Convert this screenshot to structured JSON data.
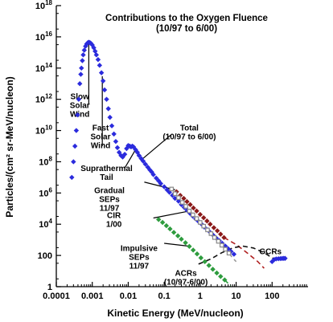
{
  "chart_data": {
    "type": "scatter",
    "title": "Contributions to the Oxygen Fluence",
    "subtitle": "(10/97 to 6/00)",
    "xlabel": "Kinetic Energy (MeV/nucleon)",
    "ylabel": "Particles/(cm² sr-MeV/nucleon)",
    "x_scale": "log",
    "y_scale": "log",
    "xlim": [
      0.0001,
      1000
    ],
    "ylim": [
      1,
      1e+18
    ],
    "x_tick_labels": [
      {
        "v": 0.0001,
        "label": "0.0001"
      },
      {
        "v": 0.001,
        "label": "0.001"
      },
      {
        "v": 0.01,
        "label": "0.01"
      },
      {
        "v": 0.1,
        "label": "0.1"
      },
      {
        "v": 1,
        "label": "1"
      },
      {
        "v": 10,
        "label": "10"
      },
      {
        "v": 100,
        "label": "100"
      }
    ],
    "y_tick_labels": [
      {
        "v": 1,
        "base": "1",
        "exp": ""
      },
      {
        "v": 100,
        "base": "100",
        "exp": ""
      },
      {
        "v": 10000,
        "base": "10",
        "exp": "4"
      },
      {
        "v": 1000000,
        "base": "10",
        "exp": "6"
      },
      {
        "v": 100000000,
        "base": "10",
        "exp": "8"
      },
      {
        "v": 10000000000,
        "base": "10",
        "exp": "10"
      },
      {
        "v": 1000000000000,
        "base": "10",
        "exp": "12"
      },
      {
        "v": 100000000000000,
        "base": "10",
        "exp": "14"
      },
      {
        "v": 10000000000000000,
        "base": "10",
        "exp": "16"
      },
      {
        "v": 1000000000000000000,
        "base": "10",
        "exp": "18"
      }
    ],
    "series": [
      {
        "color": "#2b2bdd",
        "marker": "diamond",
        "points": [
          [
            0.00027,
            10000000.0
          ],
          [
            0.0003,
            100000000.0
          ],
          [
            0.00033,
            1000000000.0
          ],
          [
            0.00036,
            10000000000.0
          ],
          [
            0.00039,
            100000000000.0
          ],
          [
            0.00042,
            1000000000000.0
          ],
          [
            0.00045,
            10000000000000.0
          ],
          [
            0.00048,
            40000000000000.0
          ],
          [
            0.0005,
            100000000000000.0
          ],
          [
            0.00053,
            300000000000000.0
          ],
          [
            0.00056,
            700000000000000.0
          ],
          [
            0.0006,
            1400000000000000.0
          ],
          [
            0.00065,
            2500000000000000.0
          ],
          [
            0.0007,
            3500000000000000.0
          ],
          [
            0.00075,
            4200000000000000.0
          ],
          [
            0.0008,
            4500000000000000.0
          ],
          [
            0.00086,
            4300000000000000.0
          ],
          [
            0.00092,
            3800000000000000.0
          ],
          [
            0.001,
            3000000000000000.0
          ],
          [
            0.0011,
            2000000000000000.0
          ],
          [
            0.0012,
            1200000000000000.0
          ],
          [
            0.0013,
            700000000000000.0
          ],
          [
            0.00145,
            350000000000000.0
          ],
          [
            0.0016,
            150000000000000.0
          ],
          [
            0.0018,
            50000000000000.0
          ],
          [
            0.002,
            15000000000000.0
          ],
          [
            0.0022,
            4000000000000.0
          ],
          [
            0.0025,
            1000000000000.0
          ],
          [
            0.0028,
            250000000000.0
          ],
          [
            0.0031,
            70000000000.0
          ],
          [
            0.0035,
            20000000000.0
          ],
          [
            0.004,
            6000000000.0
          ],
          [
            0.0045,
            2000000000.0
          ],
          [
            0.005,
            800000000.0
          ],
          [
            0.0056,
            400000000.0
          ],
          [
            0.0063,
            250000000.0
          ],
          [
            0.007,
            200000000.0
          ],
          [
            0.008,
            300000000.0
          ],
          [
            0.009,
            700000000.0
          ],
          [
            0.01,
            1100000000.0
          ],
          [
            0.011,
            1000000000.0
          ],
          [
            0.012,
            900000000.0
          ],
          [
            0.013,
            1000000000.0
          ],
          [
            0.014,
            900000000.0
          ],
          [
            0.016,
            600000000.0
          ],
          [
            0.018,
            400000000.0
          ],
          [
            0.02,
            250000000.0
          ],
          [
            0.023,
            160000000.0
          ],
          [
            0.026,
            110000000.0
          ],
          [
            0.03,
            70000000.0
          ],
          [
            0.035,
            45000000.0
          ],
          [
            0.04,
            30000000.0
          ],
          [
            0.045,
            22000000.0
          ],
          [
            0.05,
            15000000.0
          ],
          [
            0.06,
            9000000.0
          ],
          [
            0.07,
            6000000.0
          ],
          [
            0.08,
            4000000.0
          ],
          [
            0.1,
            2500000.0
          ],
          [
            0.12,
            1600000.0
          ],
          [
            0.14,
            1100000.0
          ],
          [
            0.17,
            700000.0
          ],
          [
            0.2,
            450000.0
          ],
          [
            0.25,
            300000.0
          ],
          [
            0.3,
            180000.0
          ],
          [
            0.36,
            120000.0
          ],
          [
            0.43,
            80000.0
          ],
          [
            0.52,
            50000.0
          ],
          [
            0.62,
            33000.0
          ],
          [
            0.75,
            22000.0
          ],
          [
            0.9,
            15000.0
          ],
          [
            1.1,
            10000.0
          ],
          [
            1.3,
            6500.0
          ],
          [
            1.6,
            4500.0
          ],
          [
            1.9,
            3000.0
          ],
          [
            2.3,
            2000.0
          ],
          [
            2.8,
            1300.0
          ],
          [
            3.4,
            900
          ],
          [
            4.1,
            600
          ],
          [
            5.0,
            400
          ],
          [
            6.0,
            270
          ],
          [
            7.2,
            180
          ],
          [
            8.7,
            120
          ]
        ]
      },
      {
        "color": "#2b2bdd",
        "marker": "diamond",
        "points": [
          [
            100,
            40
          ],
          [
            115,
            55
          ],
          [
            130,
            60
          ],
          [
            150,
            62
          ],
          [
            170,
            63
          ],
          [
            190,
            64
          ],
          [
            210,
            65
          ],
          [
            230,
            65
          ]
        ]
      },
      {
        "color": "#8b1a1a",
        "marker": "diamond",
        "points": [
          [
            0.22,
            1200000.0
          ],
          [
            0.28,
            700000.0
          ],
          [
            0.35,
            450000.0
          ],
          [
            0.43,
            280000.0
          ],
          [
            0.53,
            180000.0
          ],
          [
            0.65,
            110000.0
          ],
          [
            0.8,
            70000.0
          ],
          [
            1.0,
            42000.0
          ],
          [
            1.25,
            26000.0
          ],
          [
            1.55,
            16000.0
          ],
          [
            1.9,
            10000.0
          ],
          [
            2.4,
            6000.0
          ],
          [
            3.0,
            3800.0
          ],
          [
            3.7,
            2300.0
          ],
          [
            4.6,
            1400.0
          ]
        ]
      },
      {
        "color": "#888888",
        "marker": "square",
        "points": [
          [
            0.16,
            1800000.0
          ],
          [
            0.2,
            900000.0
          ],
          [
            0.25,
            500000.0
          ],
          [
            0.32,
            250000.0
          ],
          [
            0.4,
            140000.0
          ],
          [
            0.5,
            70000.0
          ],
          [
            0.63,
            40000.0
          ],
          [
            0.8,
            23000.0
          ],
          [
            1.0,
            13000.0
          ],
          [
            1.25,
            7500.0
          ],
          [
            1.6,
            4300.0
          ],
          [
            2.0,
            2500.0
          ],
          [
            2.5,
            1400.0
          ],
          [
            3.2,
            800
          ],
          [
            4.0,
            450
          ],
          [
            5.0,
            250
          ],
          [
            6.3,
            140
          ]
        ]
      },
      {
        "color": "#2e9c3e",
        "marker": "diamond",
        "points": [
          [
            0.07,
            20000.0
          ],
          [
            0.09,
            13000.0
          ],
          [
            0.115,
            8000.0
          ],
          [
            0.145,
            5000.0
          ],
          [
            0.185,
            3000.0
          ],
          [
            0.24,
            1800.0
          ],
          [
            0.3,
            1100.0
          ],
          [
            0.39,
            650
          ],
          [
            0.5,
            380
          ],
          [
            0.64,
            220
          ],
          [
            0.82,
            125
          ],
          [
            1.05,
            70
          ],
          [
            1.35,
            40
          ],
          [
            1.75,
            23
          ],
          [
            2.25,
            13
          ],
          [
            2.9,
            7.5
          ],
          [
            3.7,
            4.5
          ],
          [
            4.8,
            2.7
          ]
        ]
      }
    ],
    "lines": [
      {
        "color": "#b02020",
        "dash": "6,4",
        "points": [
          [
            4.6,
            1400.0
          ],
          [
            10,
            500
          ],
          [
            20,
            150
          ],
          [
            40,
            40
          ],
          [
            60,
            15
          ]
        ]
      },
      {
        "color": "#999999",
        "dash": "6,4",
        "points": [
          [
            6.3,
            140
          ],
          [
            8,
            70
          ],
          [
            10,
            40
          ]
        ]
      },
      {
        "color": "#2e9c3e",
        "dash": "6,4",
        "points": [
          [
            4.8,
            2.7
          ],
          [
            6,
            1.6
          ],
          [
            7,
            1.1
          ]
        ]
      },
      {
        "color": "#111111",
        "dash": "6,4",
        "points": [
          [
            0.9,
            28
          ],
          [
            2,
            60
          ],
          [
            4,
            150
          ],
          [
            8,
            300
          ],
          [
            15,
            400
          ],
          [
            30,
            300
          ],
          [
            60,
            150
          ],
          [
            100,
            70
          ],
          [
            150,
            45
          ]
        ]
      }
    ],
    "annotations": [
      {
        "lines": [
          "Slow",
          "Solar",
          "Wind"
        ],
        "text_at": [
          0.00045,
          1000000000000.0
        ],
        "pointer": [
          [
            0.0008,
            4000000000000000.0
          ],
          [
            0.0008,
            500000000000.0
          ]
        ]
      },
      {
        "lines": [
          "Fast",
          "Solar",
          "Wind"
        ],
        "text_at": [
          0.0017,
          10000000000.0
        ],
        "pointer": [
          [
            0.0019,
            30000000000000.0
          ],
          [
            0.0019,
            1000000000.0
          ]
        ]
      },
      {
        "lines": [
          "Total",
          "(10/97 to 6/00)"
        ],
        "text_at": [
          0.5,
          10000000000.0
        ],
        "pointer": [
          [
            0.022,
            120000000.0
          ],
          [
            0.15,
            5000000000.0
          ]
        ]
      },
      {
        "lines": [
          "Suprathermal",
          "Tail"
        ],
        "text_at": [
          0.0025,
          25000000.0
        ],
        "pointer": [
          [
            0.008,
            40000000.0
          ],
          [
            0.016,
            600000000.0
          ]
        ]
      },
      {
        "lines": [
          "Gradual",
          "SEPs",
          "11/97"
        ],
        "text_at": [
          0.003,
          1000000.0
        ],
        "pointer": [
          [
            0.028,
            5000000.0
          ],
          [
            0.2,
            1600000.0
          ]
        ]
      },
      {
        "lines": [
          "CIR",
          "1/00"
        ],
        "text_at": [
          0.004,
          25000.0
        ],
        "pointer": [
          [
            0.05,
            25000.0
          ],
          [
            0.5,
            70000.0
          ]
        ]
      },
      {
        "lines": [
          "Impulsive",
          "SEPs",
          "11/97"
        ],
        "text_at": [
          0.02,
          200
        ],
        "pointer": [
          [
            0.1,
            600
          ],
          [
            0.45,
            400
          ]
        ]
      },
      {
        "lines": [
          "ACRs",
          "(10/97-6/00)"
        ],
        "text_at": [
          0.4,
          5
        ],
        "pointer": []
      },
      {
        "lines": [
          "GCRs"
        ],
        "text_at": [
          90,
          120
        ],
        "pointer": []
      }
    ]
  }
}
